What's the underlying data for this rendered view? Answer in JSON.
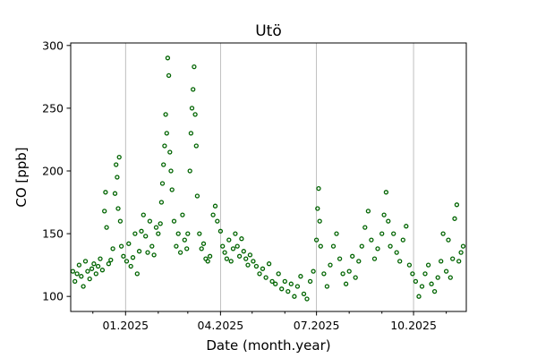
{
  "chart_data": {
    "type": "scatter",
    "title": "Utö",
    "xlabel": "Date (month.year)",
    "ylabel": "CO [ppb]",
    "xlim": [
      "2024-11-10",
      "2025-11-20"
    ],
    "ylim": [
      88,
      302
    ],
    "yticks": [
      100,
      150,
      200,
      250,
      300
    ],
    "xticks_major": [
      {
        "date": "2025-01-01",
        "label": "01.2025"
      },
      {
        "date": "2025-04-01",
        "label": "04.2025"
      },
      {
        "date": "2025-07-01",
        "label": "07.2025"
      },
      {
        "date": "2025-10-01",
        "label": "10.2025"
      }
    ],
    "xticks_minor": [
      "2024-12-01",
      "2025-02-01",
      "2025-03-01",
      "2025-05-01",
      "2025-06-01",
      "2025-08-01",
      "2025-09-01",
      "2025-11-01"
    ],
    "grid": "vertical major gridlines",
    "marker": "open circle",
    "color": "#006400",
    "series": [
      {
        "points": [
          [
            "2024-11-12",
            120
          ],
          [
            "2024-11-14",
            112
          ],
          [
            "2024-11-16",
            118
          ],
          [
            "2024-11-18",
            125
          ],
          [
            "2024-11-20",
            116
          ],
          [
            "2024-11-22",
            108
          ],
          [
            "2024-11-24",
            128
          ],
          [
            "2024-11-26",
            120
          ],
          [
            "2024-11-28",
            114
          ],
          [
            "2024-11-30",
            122
          ],
          [
            "2024-12-02",
            126
          ],
          [
            "2024-12-04",
            118
          ],
          [
            "2024-12-06",
            124
          ],
          [
            "2024-12-08",
            130
          ],
          [
            "2024-12-10",
            121
          ],
          [
            "2024-12-12",
            168
          ],
          [
            "2024-12-13",
            183
          ],
          [
            "2024-12-14",
            155
          ],
          [
            "2024-12-16",
            126
          ],
          [
            "2024-12-18",
            129
          ],
          [
            "2024-12-20",
            138
          ],
          [
            "2024-12-22",
            182
          ],
          [
            "2024-12-23",
            205
          ],
          [
            "2024-12-24",
            195
          ],
          [
            "2024-12-25",
            170
          ],
          [
            "2024-12-26",
            211
          ],
          [
            "2024-12-27",
            160
          ],
          [
            "2024-12-28",
            140
          ],
          [
            "2024-12-30",
            132
          ],
          [
            "2025-01-02",
            128
          ],
          [
            "2025-01-04",
            142
          ],
          [
            "2025-01-06",
            124
          ],
          [
            "2025-01-08",
            131
          ],
          [
            "2025-01-10",
            150
          ],
          [
            "2025-01-12",
            118
          ],
          [
            "2025-01-14",
            136
          ],
          [
            "2025-01-16",
            152
          ],
          [
            "2025-01-18",
            165
          ],
          [
            "2025-01-20",
            148
          ],
          [
            "2025-01-22",
            135
          ],
          [
            "2025-01-24",
            160
          ],
          [
            "2025-01-26",
            140
          ],
          [
            "2025-01-28",
            133
          ],
          [
            "2025-01-30",
            155
          ],
          [
            "2025-02-01",
            150
          ],
          [
            "2025-02-03",
            158
          ],
          [
            "2025-02-04",
            175
          ],
          [
            "2025-02-05",
            190
          ],
          [
            "2025-02-06",
            205
          ],
          [
            "2025-02-07",
            220
          ],
          [
            "2025-02-08",
            245
          ],
          [
            "2025-02-09",
            230
          ],
          [
            "2025-02-10",
            290
          ],
          [
            "2025-02-11",
            276
          ],
          [
            "2025-02-12",
            215
          ],
          [
            "2025-02-13",
            200
          ],
          [
            "2025-02-14",
            185
          ],
          [
            "2025-02-16",
            160
          ],
          [
            "2025-02-18",
            140
          ],
          [
            "2025-02-20",
            150
          ],
          [
            "2025-02-22",
            135
          ],
          [
            "2025-02-24",
            165
          ],
          [
            "2025-02-26",
            145
          ],
          [
            "2025-02-28",
            138
          ],
          [
            "2025-03-01",
            150
          ],
          [
            "2025-03-03",
            200
          ],
          [
            "2025-03-04",
            230
          ],
          [
            "2025-03-05",
            250
          ],
          [
            "2025-03-06",
            265
          ],
          [
            "2025-03-07",
            283
          ],
          [
            "2025-03-08",
            245
          ],
          [
            "2025-03-09",
            220
          ],
          [
            "2025-03-10",
            180
          ],
          [
            "2025-03-12",
            150
          ],
          [
            "2025-03-14",
            138
          ],
          [
            "2025-03-16",
            142
          ],
          [
            "2025-03-18",
            130
          ],
          [
            "2025-03-20",
            128
          ],
          [
            "2025-03-22",
            132
          ],
          [
            "2025-03-25",
            165
          ],
          [
            "2025-03-27",
            172
          ],
          [
            "2025-03-29",
            160
          ],
          [
            "2025-04-01",
            152
          ],
          [
            "2025-04-03",
            140
          ],
          [
            "2025-04-05",
            135
          ],
          [
            "2025-04-07",
            130
          ],
          [
            "2025-04-09",
            145
          ],
          [
            "2025-04-11",
            128
          ],
          [
            "2025-04-13",
            138
          ],
          [
            "2025-04-15",
            150
          ],
          [
            "2025-04-17",
            140
          ],
          [
            "2025-04-19",
            132
          ],
          [
            "2025-04-21",
            146
          ],
          [
            "2025-04-23",
            136
          ],
          [
            "2025-04-25",
            130
          ],
          [
            "2025-04-27",
            125
          ],
          [
            "2025-04-29",
            133
          ],
          [
            "2025-05-02",
            128
          ],
          [
            "2025-05-05",
            124
          ],
          [
            "2025-05-08",
            118
          ],
          [
            "2025-05-11",
            122
          ],
          [
            "2025-05-14",
            115
          ],
          [
            "2025-05-17",
            126
          ],
          [
            "2025-05-20",
            112
          ],
          [
            "2025-05-23",
            110
          ],
          [
            "2025-05-26",
            118
          ],
          [
            "2025-05-29",
            106
          ],
          [
            "2025-06-01",
            112
          ],
          [
            "2025-06-04",
            104
          ],
          [
            "2025-06-07",
            110
          ],
          [
            "2025-06-10",
            100
          ],
          [
            "2025-06-13",
            108
          ],
          [
            "2025-06-16",
            116
          ],
          [
            "2025-06-19",
            102
          ],
          [
            "2025-06-22",
            98
          ],
          [
            "2025-06-25",
            112
          ],
          [
            "2025-06-28",
            120
          ],
          [
            "2025-07-01",
            145
          ],
          [
            "2025-07-02",
            170
          ],
          [
            "2025-07-03",
            186
          ],
          [
            "2025-07-04",
            160
          ],
          [
            "2025-07-05",
            140
          ],
          [
            "2025-07-08",
            118
          ],
          [
            "2025-07-11",
            108
          ],
          [
            "2025-07-14",
            125
          ],
          [
            "2025-07-17",
            140
          ],
          [
            "2025-07-20",
            150
          ],
          [
            "2025-07-23",
            130
          ],
          [
            "2025-07-26",
            118
          ],
          [
            "2025-07-29",
            110
          ],
          [
            "2025-08-01",
            120
          ],
          [
            "2025-08-04",
            132
          ],
          [
            "2025-08-07",
            115
          ],
          [
            "2025-08-10",
            128
          ],
          [
            "2025-08-13",
            140
          ],
          [
            "2025-08-16",
            155
          ],
          [
            "2025-08-19",
            168
          ],
          [
            "2025-08-22",
            145
          ],
          [
            "2025-08-25",
            130
          ],
          [
            "2025-08-28",
            138
          ],
          [
            "2025-09-01",
            150
          ],
          [
            "2025-09-03",
            165
          ],
          [
            "2025-09-05",
            183
          ],
          [
            "2025-09-07",
            160
          ],
          [
            "2025-09-09",
            140
          ],
          [
            "2025-09-12",
            150
          ],
          [
            "2025-09-15",
            135
          ],
          [
            "2025-09-18",
            128
          ],
          [
            "2025-09-21",
            145
          ],
          [
            "2025-09-24",
            156
          ],
          [
            "2025-09-27",
            125
          ],
          [
            "2025-09-30",
            118
          ],
          [
            "2025-10-03",
            112
          ],
          [
            "2025-10-06",
            100
          ],
          [
            "2025-10-09",
            108
          ],
          [
            "2025-10-12",
            118
          ],
          [
            "2025-10-15",
            125
          ],
          [
            "2025-10-18",
            110
          ],
          [
            "2025-10-21",
            104
          ],
          [
            "2025-10-24",
            115
          ],
          [
            "2025-10-27",
            128
          ],
          [
            "2025-10-29",
            150
          ],
          [
            "2025-11-01",
            120
          ],
          [
            "2025-11-03",
            145
          ],
          [
            "2025-11-05",
            115
          ],
          [
            "2025-11-07",
            130
          ],
          [
            "2025-11-09",
            162
          ],
          [
            "2025-11-11",
            173
          ],
          [
            "2025-11-13",
            128
          ],
          [
            "2025-11-15",
            135
          ],
          [
            "2025-11-17",
            140
          ]
        ]
      }
    ]
  }
}
